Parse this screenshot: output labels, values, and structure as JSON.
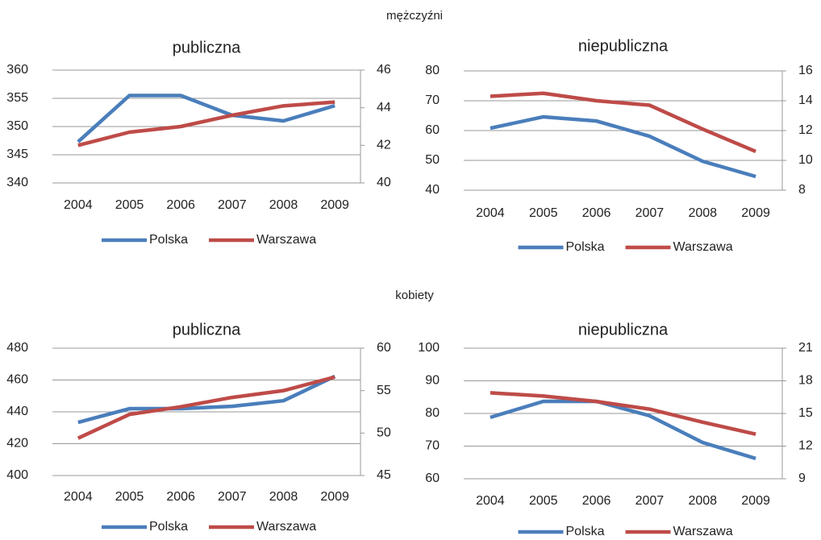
{
  "sections": [
    "mężczyźni",
    "kobiety"
  ],
  "chart_data": [
    {
      "type": "line",
      "title": "publiczna",
      "categories": [
        "2004",
        "2005",
        "2006",
        "2007",
        "2008",
        "2009"
      ],
      "ylim": [
        340,
        360
      ],
      "yticks": [
        340,
        345,
        350,
        355,
        360
      ],
      "y2lim": [
        40,
        46
      ],
      "y2ticks": [
        40,
        42,
        44,
        46
      ],
      "grid": true,
      "legend": "bottom",
      "series": [
        {
          "name": "Polska",
          "color": "#4a7ebb",
          "values": [
            347.3,
            355.5,
            355.5,
            352,
            351,
            353.7
          ]
        },
        {
          "name": "Warszawa",
          "color": "#be4b48",
          "axis": "y2",
          "values": [
            42.0,
            42.7,
            43.0,
            43.6,
            44.1,
            44.3
          ]
        }
      ]
    },
    {
      "type": "line",
      "title": "niepubliczna",
      "categories": [
        "2004",
        "2005",
        "2006",
        "2007",
        "2008",
        "2009"
      ],
      "ylim": [
        40,
        80
      ],
      "yticks": [
        40,
        50,
        60,
        70,
        80
      ],
      "y2lim": [
        8,
        16
      ],
      "y2ticks": [
        8,
        10,
        12,
        14,
        16
      ],
      "grid": true,
      "legend": "bottom",
      "series": [
        {
          "name": "Polska",
          "color": "#4a7ebb",
          "values": [
            60.8,
            64.6,
            63.2,
            58.1,
            49.7,
            44.6
          ]
        },
        {
          "name": "Warszawa",
          "color": "#be4b48",
          "axis": "y2",
          "values": [
            14.3,
            14.5,
            14.0,
            13.7,
            12.1,
            10.6
          ]
        }
      ]
    },
    {
      "type": "line",
      "title": "publiczna",
      "categories": [
        "2004",
        "2005",
        "2006",
        "2007",
        "2008",
        "2009"
      ],
      "ylim": [
        400,
        480
      ],
      "yticks": [
        400,
        420,
        440,
        460,
        480
      ],
      "y2lim": [
        45,
        60
      ],
      "y2ticks": [
        45,
        50,
        55,
        60
      ],
      "grid": true,
      "legend": "bottom",
      "series": [
        {
          "name": "Polska",
          "color": "#4a7ebb",
          "values": [
            433.4,
            442,
            442,
            443.5,
            447,
            462.3
          ]
        },
        {
          "name": "Warszawa",
          "color": "#be4b48",
          "axis": "y2",
          "values": [
            49.4,
            52.2,
            53.1,
            54.2,
            55.0,
            56.6
          ]
        }
      ]
    },
    {
      "type": "line",
      "title": "niepubliczna",
      "categories": [
        "2004",
        "2005",
        "2006",
        "2007",
        "2008",
        "2009"
      ],
      "ylim": [
        60,
        100
      ],
      "yticks": [
        60,
        70,
        80,
        90,
        100
      ],
      "y2lim": [
        9,
        21
      ],
      "y2ticks": [
        9,
        12,
        15,
        18,
        21
      ],
      "grid": true,
      "legend": "bottom",
      "series": [
        {
          "name": "Polska",
          "color": "#4a7ebb",
          "values": [
            78.8,
            83.7,
            83.7,
            79.3,
            71.1,
            66.2
          ]
        },
        {
          "name": "Warszawa",
          "color": "#be4b48",
          "axis": "y2",
          "values": [
            16.9,
            16.6,
            16.1,
            15.4,
            14.2,
            13.1
          ]
        }
      ]
    }
  ]
}
